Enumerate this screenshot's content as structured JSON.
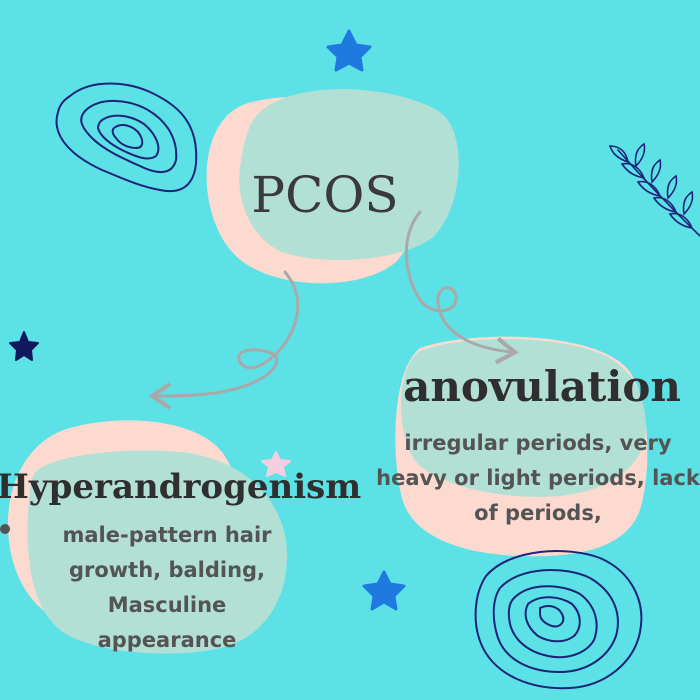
{
  "diagram": {
    "root": {
      "label": "PCOS"
    },
    "branches": [
      {
        "title": "anovulation",
        "description": "irregular periods, very heavy or light periods, lack of periods,"
      },
      {
        "title": "Hyperandrogenism",
        "description": "male-pattern hair growth, balding, Masculine appearance"
      }
    ]
  },
  "colors": {
    "background": "#5ce1e6",
    "blob_front": "#b3e0d5",
    "blob_back": "#fddad0",
    "arrow": "#a9a9a9",
    "text_dark": "#333333",
    "text_body": "#545454",
    "star_blue": "#1f7ae0",
    "star_navy": "#121a5e",
    "star_pink": "#f5cde0",
    "doodle": "#1b2478"
  },
  "decorations": [
    "topographic-doodle",
    "topographic-doodle",
    "leaf-branch",
    "star",
    "star",
    "star",
    "star"
  ]
}
